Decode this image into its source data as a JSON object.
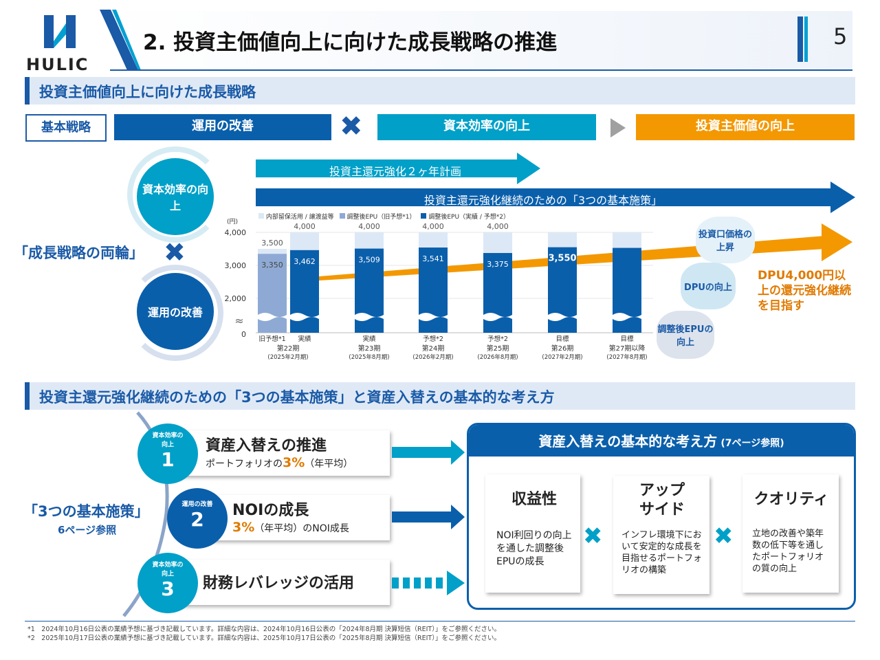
{
  "header": {
    "logo_text": "HULIC",
    "title": "2. 投資主価値向上に向けた成長戦略の推進",
    "page_number": "5"
  },
  "section1": {
    "title": "投資主価値向上に向けた成長戦略",
    "basic_strategy_label": "基本戦略",
    "strategies": [
      "運用の改善",
      "資本効率の向上",
      "投資主価値の向上"
    ],
    "arrow_2year": "投資主還元強化２ヶ年計画",
    "arrow_3measures": "投資主還元強化継続のための「3つの基本施策」",
    "gear_top": "資本効率の向上",
    "gear_bottom": "運用の改善",
    "two_wheels": "「成長戦略の両輪」",
    "right_gears": [
      "投資口価格の上昇",
      "DPUの向上",
      "調整後EPUの向上"
    ],
    "dpu_goal": "DPU4,000円以上の還元強化継続を目指す"
  },
  "chart_data": {
    "type": "bar",
    "unit_label": "(円)",
    "yticks": [
      "4,000",
      "3,000",
      "2,000",
      "0"
    ],
    "ylim": [
      0,
      4000
    ],
    "axis_break": true,
    "legend": [
      "内部留保活用 / 譲渡益等",
      "調整後EPU（旧予想*1）",
      "調整後EPU（実績 / 予想*2）"
    ],
    "legend_placement": "top",
    "colors": {
      "retained": "#dce8f6",
      "old_forecast": "#8eaad4",
      "epu": "#0a5fab",
      "trend": "#f39800"
    },
    "bars": [
      {
        "label": "旧予想*1",
        "period": "第22期",
        "date": "(2025年2月期)",
        "epu": 3350,
        "total": 3500,
        "epu_label": "3,350",
        "total_label": "3,500",
        "kind": "old_forecast"
      },
      {
        "label": "実績",
        "period": "",
        "date": "",
        "epu": 3462,
        "total": 4000,
        "epu_label": "3,462",
        "total_label": "4,000",
        "kind": "epu"
      },
      {
        "label": "実績",
        "period": "第23期",
        "date": "(2025年8月期)",
        "epu": 3509,
        "total": 4000,
        "epu_label": "3,509",
        "total_label": "4,000",
        "kind": "epu"
      },
      {
        "label": "予想*2",
        "period": "第24期",
        "date": "(2026年2月期)",
        "epu": 3541,
        "total": 4000,
        "epu_label": "3,541",
        "total_label": "4,000",
        "kind": "epu"
      },
      {
        "label": "予想*2",
        "period": "第25期",
        "date": "(2026年8月期)",
        "epu": 3375,
        "total": 4000,
        "epu_label": "3,375",
        "total_label": "4,000",
        "kind": "epu"
      },
      {
        "label": "目標",
        "period": "第26期",
        "date": "(2027年2月期)",
        "epu": 3550,
        "total": null,
        "epu_label": "3,550",
        "total_label": "",
        "kind": "epu"
      },
      {
        "label": "目標",
        "period": "第27期以降",
        "date": "(2027年8月期)",
        "epu": null,
        "total": null,
        "epu_label": "",
        "total_label": "",
        "kind": "epu"
      }
    ]
  },
  "section2": {
    "title": "投資主還元強化継続のための「3つの基本施策」と資産入替えの基本的な考え方",
    "three_measures": "「3つの基本施策」",
    "see_page": "6ページ参照",
    "measures": [
      {
        "num": "1",
        "tag": "資本効率の向上",
        "title": "資産入替えの推進",
        "sub_pre": "ポートフォリオの",
        "sub_pct": "3%",
        "sub_post": "（年平均）"
      },
      {
        "num": "2",
        "tag": "運用の改善",
        "title": "NOIの成長",
        "sub_pre": "",
        "sub_pct": "3%",
        "sub_post": "（年平均）のNOI成長"
      },
      {
        "num": "3",
        "tag": "資本効率の向上",
        "title": "財務レバレッジの活用",
        "sub_pre": "",
        "sub_pct": "",
        "sub_post": ""
      }
    ],
    "policy_title": "資産入替えの基本的な考え方",
    "policy_ref": "(7ページ参照)",
    "policies": [
      {
        "title": "収益性",
        "body": "NOI利回りの向上を通した調整後EPUの成長"
      },
      {
        "title": "アップサイド",
        "body": "インフレ環境下において安定的な成長を目指せるポートフォリオの構築"
      },
      {
        "title": "クオリティ",
        "body": "立地の改善や築年数の低下等を通したポートフォリオの質の向上"
      }
    ]
  },
  "footnotes": [
    "*1　2024年10月16日公表の業績予想に基づき記載しています。詳細な内容は、2024年10月16日公表の「2024年8月期 決算短信（REIT）」をご参照ください。",
    "*2　2025年10月17日公表の業績予想に基づき記載しています。詳細な内容は、2025年10月17日公表の「2025年8月期 決算短信（REIT）」をご参照ください。"
  ]
}
